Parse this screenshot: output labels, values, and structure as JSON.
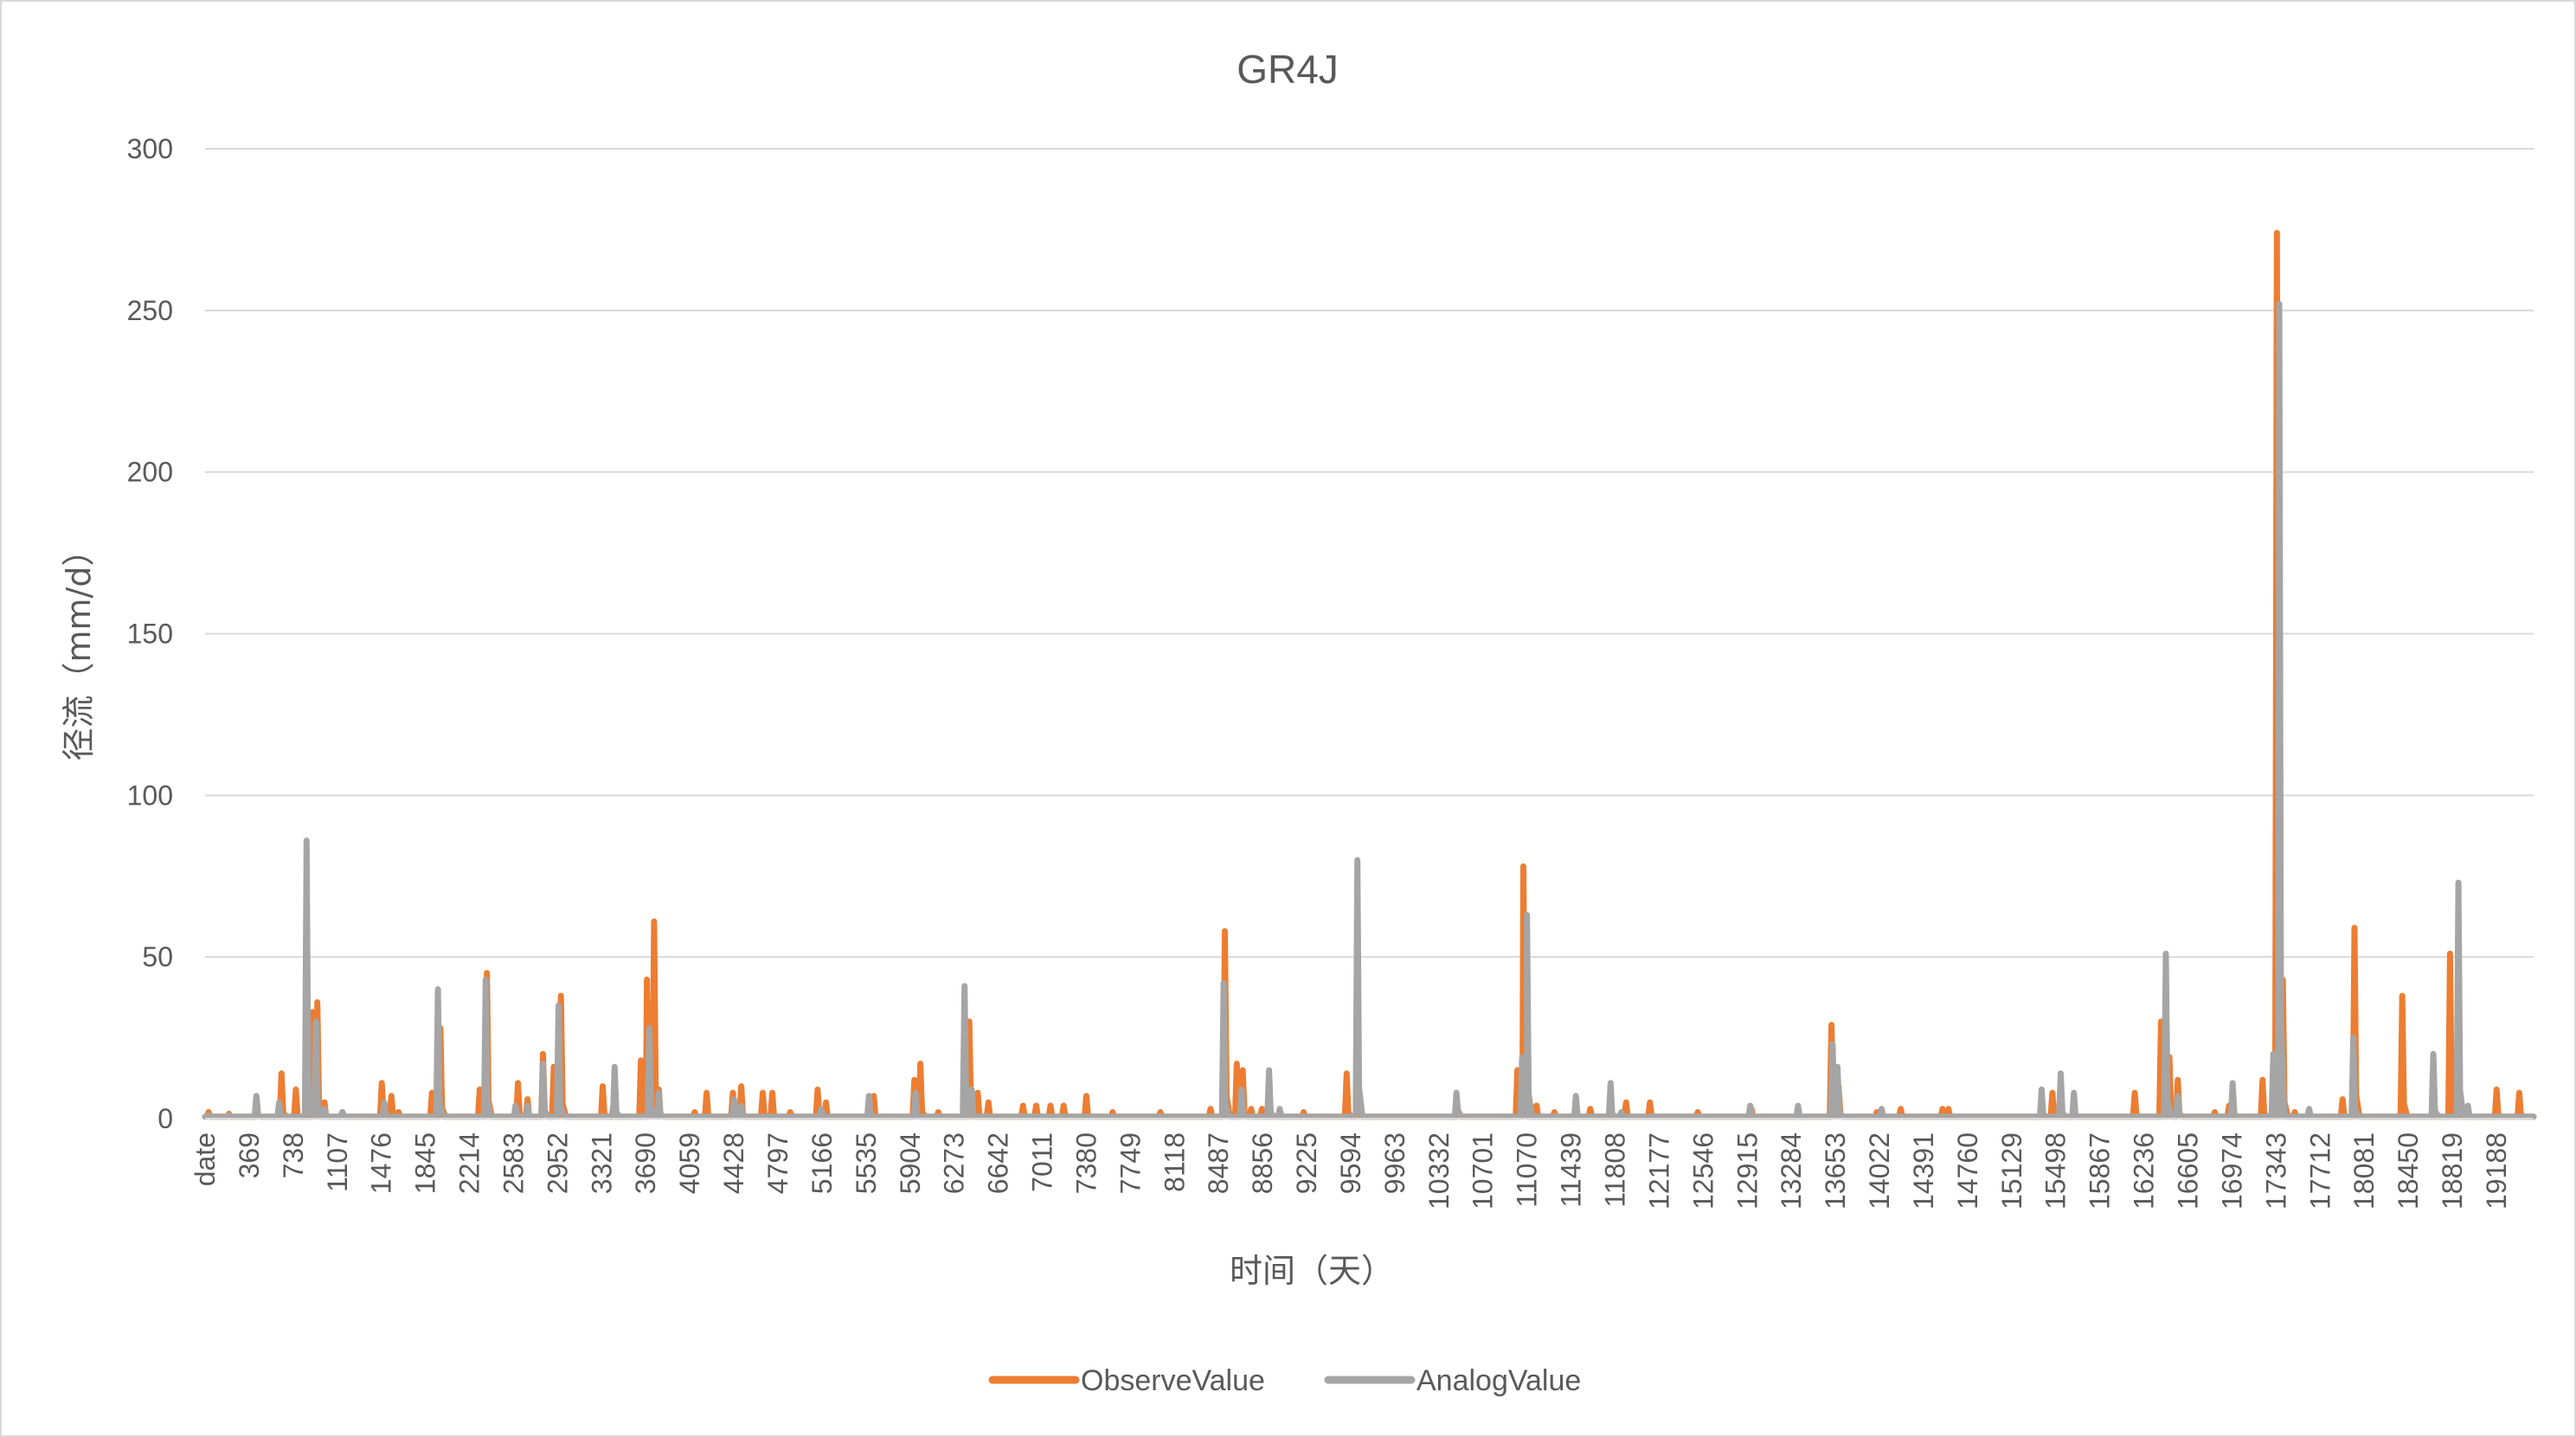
{
  "colors": {
    "observe": "#ED7D31",
    "analog": "#A5A5A5",
    "grid": "#D9D9D9",
    "text": "#595959"
  },
  "chart_data": {
    "type": "line",
    "title": "GR4J",
    "xlabel": "时间（天）",
    "ylabel": "径流（mm/d）",
    "ylim": [
      0,
      300
    ],
    "yticks": [
      0,
      50,
      100,
      150,
      200,
      250,
      300
    ],
    "xlim": [
      0,
      19500
    ],
    "xtick_labels": [
      "date",
      "369",
      "738",
      "1107",
      "1476",
      "1845",
      "2214",
      "2583",
      "2952",
      "3321",
      "3690",
      "4059",
      "4428",
      "4797",
      "5166",
      "5535",
      "5904",
      "6273",
      "6642",
      "7011",
      "7380",
      "7749",
      "8118",
      "8487",
      "8856",
      "9225",
      "9594",
      "9963",
      "10332",
      "10701",
      "11070",
      "11439",
      "11808",
      "12177",
      "12546",
      "12915",
      "13284",
      "13653",
      "14022",
      "14391",
      "14760",
      "15129",
      "15498",
      "15867",
      "16236",
      "16605",
      "16974",
      "17343",
      "17712",
      "18081",
      "18450",
      "18819",
      "19188"
    ],
    "grid": true,
    "legend_position": "bottom",
    "series": [
      {
        "name": "ObserveValue",
        "color": "#ED7D31",
        "peaks": [
          [
            30,
            2
          ],
          [
            200,
            1.5
          ],
          [
            430,
            7
          ],
          [
            640,
            14
          ],
          [
            760,
            9
          ],
          [
            900,
            33
          ],
          [
            940,
            36
          ],
          [
            1000,
            5
          ],
          [
            1150,
            2
          ],
          [
            1480,
            11
          ],
          [
            1560,
            7
          ],
          [
            1620,
            2
          ],
          [
            1900,
            8
          ],
          [
            1970,
            28
          ],
          [
            2300,
            9
          ],
          [
            2360,
            45
          ],
          [
            2620,
            11
          ],
          [
            2700,
            6
          ],
          [
            2830,
            20
          ],
          [
            2920,
            16
          ],
          [
            2980,
            38
          ],
          [
            3330,
            10
          ],
          [
            3420,
            4
          ],
          [
            3650,
            18
          ],
          [
            3700,
            43
          ],
          [
            3760,
            61
          ],
          [
            3800,
            9
          ],
          [
            4100,
            2
          ],
          [
            4200,
            8
          ],
          [
            4420,
            8
          ],
          [
            4490,
            10
          ],
          [
            4670,
            8
          ],
          [
            4750,
            8
          ],
          [
            4900,
            2
          ],
          [
            5130,
            9
          ],
          [
            5200,
            5
          ],
          [
            5600,
            7
          ],
          [
            5940,
            12
          ],
          [
            5990,
            17
          ],
          [
            6140,
            2
          ],
          [
            6400,
            30
          ],
          [
            6470,
            8
          ],
          [
            6560,
            5
          ],
          [
            6850,
            4
          ],
          [
            6960,
            4
          ],
          [
            7080,
            4
          ],
          [
            7190,
            4
          ],
          [
            7380,
            7
          ],
          [
            7600,
            2
          ],
          [
            8000,
            2
          ],
          [
            8420,
            3
          ],
          [
            8540,
            58
          ],
          [
            8640,
            17
          ],
          [
            8690,
            15
          ],
          [
            8760,
            3
          ],
          [
            8850,
            3
          ],
          [
            9200,
            2
          ],
          [
            9560,
            14
          ],
          [
            9660,
            4
          ],
          [
            10500,
            2
          ],
          [
            10990,
            15
          ],
          [
            11040,
            78
          ],
          [
            11150,
            4
          ],
          [
            11300,
            2
          ],
          [
            11600,
            3
          ],
          [
            11900,
            5
          ],
          [
            12100,
            5
          ],
          [
            12500,
            2
          ],
          [
            12950,
            3
          ],
          [
            13620,
            29
          ],
          [
            13680,
            10
          ],
          [
            14000,
            2
          ],
          [
            14200,
            3
          ],
          [
            14550,
            3
          ],
          [
            14600,
            3
          ],
          [
            15470,
            8
          ],
          [
            16160,
            8
          ],
          [
            16380,
            30
          ],
          [
            16450,
            19
          ],
          [
            16520,
            12
          ],
          [
            16830,
            2
          ],
          [
            16950,
            4
          ],
          [
            17230,
            12
          ],
          [
            17350,
            274
          ],
          [
            17400,
            43
          ],
          [
            17500,
            2
          ],
          [
            17900,
            6
          ],
          [
            18000,
            59
          ],
          [
            18400,
            38
          ],
          [
            18800,
            51
          ],
          [
            19190,
            9
          ],
          [
            19380,
            8
          ]
        ]
      },
      {
        "name": "AnalogValue",
        "color": "#A5A5A5",
        "peaks": [
          [
            30,
            1
          ],
          [
            200,
            1
          ],
          [
            430,
            7
          ],
          [
            620,
            5
          ],
          [
            850,
            86
          ],
          [
            930,
            30
          ],
          [
            1000,
            3
          ],
          [
            1150,
            2
          ],
          [
            1500,
            5
          ],
          [
            1950,
            40
          ],
          [
            2350,
            43
          ],
          [
            2600,
            4
          ],
          [
            2700,
            4
          ],
          [
            2830,
            17
          ],
          [
            2960,
            35
          ],
          [
            3430,
            16
          ],
          [
            3720,
            28
          ],
          [
            3800,
            8
          ],
          [
            4430,
            6
          ],
          [
            4490,
            4
          ],
          [
            5160,
            3
          ],
          [
            5560,
            7
          ],
          [
            5950,
            8
          ],
          [
            6360,
            41
          ],
          [
            6420,
            9
          ],
          [
            8530,
            42
          ],
          [
            8680,
            9
          ],
          [
            8910,
            15
          ],
          [
            9000,
            3
          ],
          [
            9650,
            80
          ],
          [
            10480,
            8
          ],
          [
            11030,
            19
          ],
          [
            11070,
            63
          ],
          [
            11480,
            7
          ],
          [
            11770,
            11
          ],
          [
            11860,
            2
          ],
          [
            12940,
            4
          ],
          [
            13340,
            4
          ],
          [
            13630,
            23
          ],
          [
            13670,
            16
          ],
          [
            14040,
            3
          ],
          [
            15380,
            9
          ],
          [
            15540,
            14
          ],
          [
            15650,
            8
          ],
          [
            16420,
            51
          ],
          [
            16520,
            7
          ],
          [
            16980,
            11
          ],
          [
            17320,
            20
          ],
          [
            17370,
            252
          ],
          [
            17620,
            3
          ],
          [
            17990,
            25
          ],
          [
            18660,
            20
          ],
          [
            18870,
            73
          ],
          [
            18950,
            4
          ]
        ]
      }
    ]
  }
}
